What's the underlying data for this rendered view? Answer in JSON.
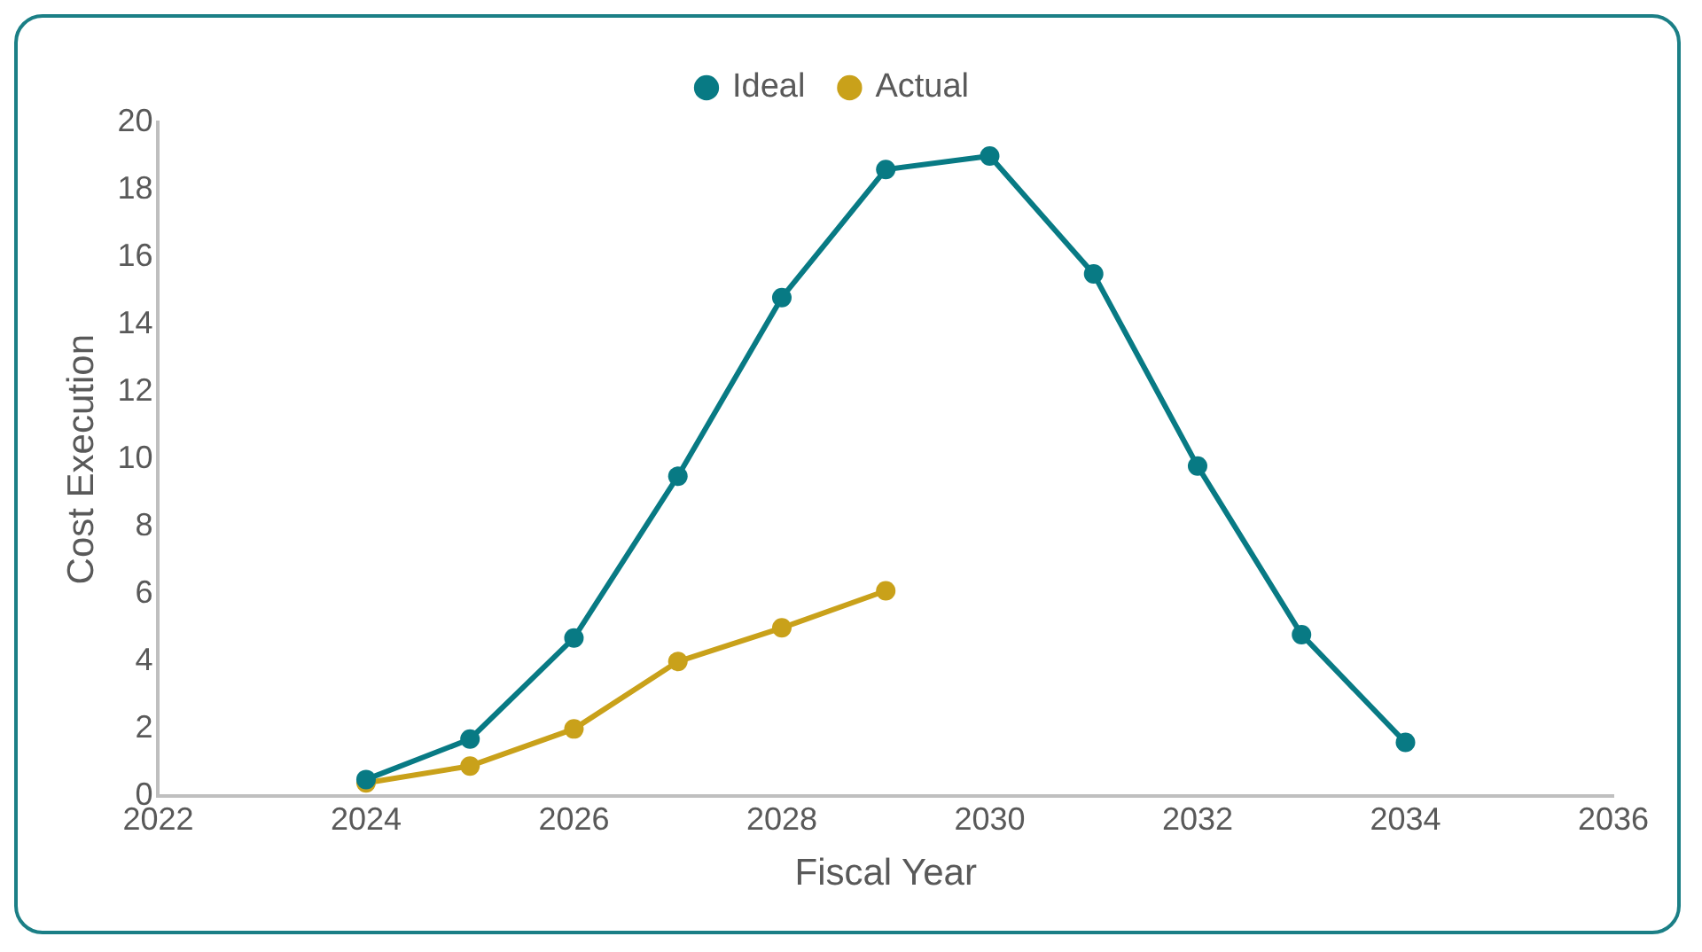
{
  "chart_data": {
    "type": "line",
    "xlabel": "Fiscal Year",
    "ylabel": "Cost Execution",
    "xlim": [
      2022,
      2036
    ],
    "xticks": [
      2022,
      2024,
      2026,
      2028,
      2030,
      2032,
      2034,
      2036
    ],
    "ylim": [
      0,
      20
    ],
    "yticks": [
      0,
      2,
      4,
      6,
      8,
      10,
      12,
      14,
      16,
      18,
      20
    ],
    "grid": false,
    "legend": "top",
    "marker": "circle",
    "line_style": "solid",
    "series": [
      {
        "name": "Actual",
        "color": "#c9a11a",
        "x": [
          2024,
          2025,
          2026,
          2027,
          2028,
          2029
        ],
        "values": [
          0.4,
          0.9,
          2.0,
          4.0,
          5.0,
          6.1
        ]
      },
      {
        "name": "Ideal",
        "color": "#087a84",
        "x": [
          2024,
          2025,
          2026,
          2027,
          2028,
          2029,
          2030,
          2031,
          2032,
          2033,
          2034
        ],
        "values": [
          0.5,
          1.7,
          4.7,
          9.5,
          14.8,
          18.6,
          19.0,
          15.5,
          9.8,
          4.8,
          1.6
        ]
      }
    ]
  }
}
